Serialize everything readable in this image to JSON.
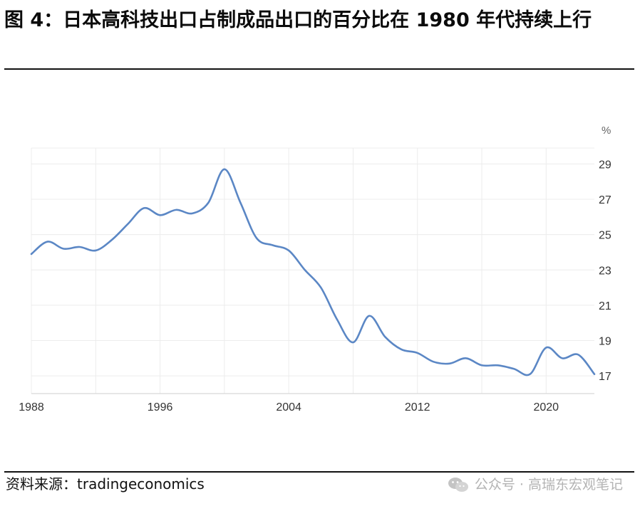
{
  "title": "图 4：日本高科技出口占制成品出口的百分比在 1980 年代持续上行",
  "source": "资料来源：tradingeconomics",
  "watermark": "公众号 · 高瑞东宏观笔记",
  "colors": {
    "line": "#5b87c5",
    "grid": "#ececec",
    "text": "#333333"
  },
  "chart_data": {
    "type": "line",
    "unit_label": "%",
    "x_ticks": [
      1988,
      1996,
      2004,
      2012,
      2020
    ],
    "y_ticks": [
      17,
      19,
      21,
      23,
      25,
      27,
      29
    ],
    "xlim": [
      1988,
      2023
    ],
    "ylim": [
      16.0,
      29.9
    ],
    "y_axis_side": "right",
    "grid": true,
    "x": [
      1988,
      1989,
      1990,
      1991,
      1992,
      1993,
      1994,
      1995,
      1996,
      1997,
      1998,
      1999,
      2000,
      2001,
      2002,
      2003,
      2004,
      2005,
      2006,
      2007,
      2008,
      2009,
      2010,
      2011,
      2012,
      2013,
      2014,
      2015,
      2016,
      2017,
      2018,
      2019,
      2020,
      2021,
      2022,
      2023
    ],
    "values": [
      23.9,
      24.6,
      24.2,
      24.3,
      24.1,
      24.7,
      25.6,
      26.5,
      26.1,
      26.4,
      26.2,
      26.8,
      28.7,
      26.8,
      24.8,
      24.4,
      24.1,
      23.0,
      22.0,
      20.2,
      18.9,
      20.4,
      19.2,
      18.5,
      18.3,
      17.8,
      17.7,
      18.0,
      17.6,
      17.6,
      17.4,
      17.1,
      18.6,
      18.0,
      18.2,
      17.1
    ]
  }
}
